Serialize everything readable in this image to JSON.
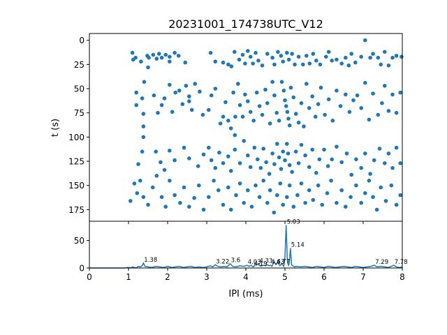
{
  "chart_data": [
    {
      "type": "scatter",
      "title": "20231001_174738UTC_V12",
      "xlabel": "",
      "ylabel": "t (s)",
      "xlim": [
        0,
        8
      ],
      "ylim": [
        187,
        -7
      ],
      "y_inverted": true,
      "xticks": [],
      "yticks": [
        0,
        25,
        50,
        75,
        100,
        125,
        150,
        175
      ],
      "ytick_labels": [
        "0",
        "25",
        "50",
        "75",
        "100",
        "125",
        "150",
        "175"
      ],
      "marker_color": "#1f77b4",
      "grid": false,
      "legend": "none",
      "points": [
        [
          1.1,
          13
        ],
        [
          1.12,
          20
        ],
        [
          1.18,
          18
        ],
        [
          1.32,
          22
        ],
        [
          1.48,
          16
        ],
        [
          1.52,
          18
        ],
        [
          1.63,
          15
        ],
        [
          1.72,
          19
        ],
        [
          1.78,
          14
        ],
        [
          1.85,
          18
        ],
        [
          1.95,
          15
        ],
        [
          2.05,
          17
        ],
        [
          2.18,
          13
        ],
        [
          2.28,
          16
        ],
        [
          2.05,
          22
        ],
        [
          1.5,
          28
        ],
        [
          2.45,
          23
        ],
        [
          3.1,
          13
        ],
        [
          3.22,
          22
        ],
        [
          3.42,
          23
        ],
        [
          3.55,
          25
        ],
        [
          3.63,
          27
        ],
        [
          3.71,
          12
        ],
        [
          3.83,
          20
        ],
        [
          3.92,
          15
        ],
        [
          3.98,
          24
        ],
        [
          4.05,
          11
        ],
        [
          4.12,
          17
        ],
        [
          4.18,
          24
        ],
        [
          4.25,
          13
        ],
        [
          4.32,
          21
        ],
        [
          4.42,
          26
        ],
        [
          4.55,
          14
        ],
        [
          4.68,
          18
        ],
        [
          4.73,
          25
        ],
        [
          4.82,
          12
        ],
        [
          4.9,
          16
        ],
        [
          4.95,
          22
        ],
        [
          5.05,
          13
        ],
        [
          5.1,
          20
        ],
        [
          5.18,
          14
        ],
        [
          5.25,
          25
        ],
        [
          5.35,
          17
        ],
        [
          5.46,
          25
        ],
        [
          5.55,
          16
        ],
        [
          5.63,
          24
        ],
        [
          5.72,
          14
        ],
        [
          5.8,
          21
        ],
        [
          5.9,
          25
        ],
        [
          6.05,
          17
        ],
        [
          6.12,
          12
        ],
        [
          6.2,
          21
        ],
        [
          6.32,
          20
        ],
        [
          6.45,
          24
        ],
        [
          6.55,
          18
        ],
        [
          6.63,
          26
        ],
        [
          6.7,
          14
        ],
        [
          6.8,
          23
        ],
        [
          6.95,
          17
        ],
        [
          7.05,
          0
        ],
        [
          7.18,
          18
        ],
        [
          7.25,
          14
        ],
        [
          7.38,
          18
        ],
        [
          7.45,
          25
        ],
        [
          7.55,
          12
        ],
        [
          7.65,
          26
        ],
        [
          7.75,
          18
        ],
        [
          7.85,
          16
        ],
        [
          7.98,
          17
        ],
        [
          1.4,
          43
        ],
        [
          1.2,
          54
        ],
        [
          1.2,
          67
        ],
        [
          1.35,
          60
        ],
        [
          1.38,
          76
        ],
        [
          1.65,
          57
        ],
        [
          1.75,
          75
        ],
        [
          1.85,
          67
        ],
        [
          1.92,
          60
        ],
        [
          2.05,
          46
        ],
        [
          2.12,
          74
        ],
        [
          2.2,
          54
        ],
        [
          2.3,
          52
        ],
        [
          2.38,
          66
        ],
        [
          2.47,
          47
        ],
        [
          2.55,
          58
        ],
        [
          2.62,
          72
        ],
        [
          2.7,
          45
        ],
        [
          2.82,
          53
        ],
        [
          2.9,
          77
        ],
        [
          3.05,
          72
        ],
        [
          3.12,
          57
        ],
        [
          3.22,
          50
        ],
        [
          3.35,
          86
        ],
        [
          3.42,
          79
        ],
        [
          3.48,
          64
        ],
        [
          3.55,
          83
        ],
        [
          3.62,
          91
        ],
        [
          3.68,
          54
        ],
        [
          3.73,
          79
        ],
        [
          3.8,
          45
        ],
        [
          3.85,
          67
        ],
        [
          3.92,
          79
        ],
        [
          3.98,
          56
        ],
        [
          4.05,
          63
        ],
        [
          4.12,
          74
        ],
        [
          4.2,
          83
        ],
        [
          4.28,
          54
        ],
        [
          4.35,
          68
        ],
        [
          4.42,
          77
        ],
        [
          4.5,
          51
        ],
        [
          4.55,
          65
        ],
        [
          4.62,
          86
        ],
        [
          4.68,
          43
        ],
        [
          4.73,
          57
        ],
        [
          4.79,
          75
        ],
        [
          4.85,
          83
        ],
        [
          4.92,
          43
        ],
        [
          4.97,
          52
        ],
        [
          5.0,
          62
        ],
        [
          5.03,
          68
        ],
        [
          5.06,
          74
        ],
        [
          5.09,
          81
        ],
        [
          5.12,
          88
        ],
        [
          5.15,
          49
        ],
        [
          5.22,
          59
        ],
        [
          5.28,
          76
        ],
        [
          5.35,
          85
        ],
        [
          5.42,
          65
        ],
        [
          5.48,
          89
        ],
        [
          5.55,
          45
        ],
        [
          5.62,
          70
        ],
        [
          5.7,
          58
        ],
        [
          5.78,
          79
        ],
        [
          5.85,
          66
        ],
        [
          5.92,
          49
        ],
        [
          6.02,
          77
        ],
        [
          6.12,
          61
        ],
        [
          6.22,
          83
        ],
        [
          6.32,
          52
        ],
        [
          6.42,
          68
        ],
        [
          6.55,
          56
        ],
        [
          6.65,
          74
        ],
        [
          6.75,
          62
        ],
        [
          6.85,
          57
        ],
        [
          6.95,
          70
        ],
        [
          7.05,
          44
        ],
        [
          7.15,
          82
        ],
        [
          7.25,
          55
        ],
        [
          7.38,
          77
        ],
        [
          7.48,
          65
        ],
        [
          7.55,
          47
        ],
        [
          7.65,
          73
        ],
        [
          7.75,
          56
        ],
        [
          7.85,
          75
        ],
        [
          7.95,
          54
        ],
        [
          1.38,
          89
        ],
        [
          2.55,
          63
        ],
        [
          3.72,
          98
        ],
        [
          1.38,
          100
        ],
        [
          1.35,
          115
        ],
        [
          1.25,
          128
        ],
        [
          1.7,
          115
        ],
        [
          1.82,
          126
        ],
        [
          1.92,
          134
        ],
        [
          2.05,
          114
        ],
        [
          2.18,
          124
        ],
        [
          2.42,
          111
        ],
        [
          2.55,
          122
        ],
        [
          2.78,
          130
        ],
        [
          2.92,
          118
        ],
        [
          3.05,
          111
        ],
        [
          3.12,
          124
        ],
        [
          3.22,
          132
        ],
        [
          3.32,
          116
        ],
        [
          3.42,
          127
        ],
        [
          3.55,
          120
        ],
        [
          3.62,
          135
        ],
        [
          3.72,
          113
        ],
        [
          3.85,
          127
        ],
        [
          3.95,
          104
        ],
        [
          4.05,
          119
        ],
        [
          4.12,
          131
        ],
        [
          4.22,
          111
        ],
        [
          4.3,
          123
        ],
        [
          4.38,
          132
        ],
        [
          4.45,
          112
        ],
        [
          4.52,
          126
        ],
        [
          4.6,
          138
        ],
        [
          4.68,
          117
        ],
        [
          4.73,
          128
        ],
        [
          4.8,
          107
        ],
        [
          4.85,
          121
        ],
        [
          4.9,
          133
        ],
        [
          4.95,
          115
        ],
        [
          5.0,
          124
        ],
        [
          5.05,
          107
        ],
        [
          5.08,
          117
        ],
        [
          5.12,
          129
        ],
        [
          5.18,
          136
        ],
        [
          5.28,
          115
        ],
        [
          5.35,
          127
        ],
        [
          5.42,
          108
        ],
        [
          5.52,
          119
        ],
        [
          5.62,
          131
        ],
        [
          5.7,
          113
        ],
        [
          5.8,
          137
        ],
        [
          5.88,
          123
        ],
        [
          6.0,
          113
        ],
        [
          6.1,
          130
        ],
        [
          6.2,
          123
        ],
        [
          6.32,
          110
        ],
        [
          6.45,
          126
        ],
        [
          6.58,
          117
        ],
        [
          6.7,
          139
        ],
        [
          6.82,
          123
        ],
        [
          6.95,
          132
        ],
        [
          7.05,
          117
        ],
        [
          7.18,
          138
        ],
        [
          7.28,
          124
        ],
        [
          7.42,
          112
        ],
        [
          7.55,
          127
        ],
        [
          7.65,
          117
        ],
        [
          7.75,
          132
        ],
        [
          7.85,
          111
        ],
        [
          7.95,
          127
        ],
        [
          1.05,
          166
        ],
        [
          1.15,
          148
        ],
        [
          1.22,
          158
        ],
        [
          1.3,
          145
        ],
        [
          1.38,
          162
        ],
        [
          1.5,
          170
        ],
        [
          1.62,
          152
        ],
        [
          1.72,
          140
        ],
        [
          1.85,
          162
        ],
        [
          1.95,
          172
        ],
        [
          2.05,
          145
        ],
        [
          2.18,
          160
        ],
        [
          2.32,
          168
        ],
        [
          2.42,
          152
        ],
        [
          2.55,
          172
        ],
        [
          2.68,
          163
        ],
        [
          2.8,
          150
        ],
        [
          2.92,
          175
        ],
        [
          3.05,
          162
        ],
        [
          3.18,
          145
        ],
        [
          3.3,
          155
        ],
        [
          3.42,
          170
        ],
        [
          3.55,
          152
        ],
        [
          3.62,
          175
        ],
        [
          3.75,
          160
        ],
        [
          3.85,
          148
        ],
        [
          3.95,
          168
        ],
        [
          4.05,
          155
        ],
        [
          4.15,
          172
        ],
        [
          4.25,
          150
        ],
        [
          4.35,
          162
        ],
        [
          4.45,
          145
        ],
        [
          4.55,
          168
        ],
        [
          4.62,
          155
        ],
        [
          4.72,
          178
        ],
        [
          4.8,
          160
        ],
        [
          4.88,
          148
        ],
        [
          4.95,
          170
        ],
        [
          5.05,
          162
        ],
        [
          5.12,
          150
        ],
        [
          5.22,
          172
        ],
        [
          5.32,
          160
        ],
        [
          5.42,
          148
        ],
        [
          5.52,
          168
        ],
        [
          5.62,
          155
        ],
        [
          5.72,
          165
        ],
        [
          5.85,
          150
        ],
        [
          5.95,
          170
        ],
        [
          6.08,
          158
        ],
        [
          6.18,
          145
        ],
        [
          6.32,
          168
        ],
        [
          6.45,
          155
        ],
        [
          6.55,
          172
        ],
        [
          6.68,
          162
        ],
        [
          6.82,
          150
        ],
        [
          6.95,
          168
        ],
        [
          7.05,
          158
        ],
        [
          7.15,
          145
        ],
        [
          7.25,
          162
        ],
        [
          7.35,
          175
        ],
        [
          7.45,
          152
        ],
        [
          7.58,
          166
        ],
        [
          7.72,
          150
        ],
        [
          7.85,
          170
        ],
        [
          7.95,
          160
        ]
      ]
    },
    {
      "type": "line",
      "title": "",
      "xlabel": "IPI (ms)",
      "ylabel": "",
      "xlim": [
        0,
        8
      ],
      "ylim": [
        0,
        85
      ],
      "xticks": [
        0,
        1,
        2,
        3,
        4,
        5,
        6,
        7,
        8
      ],
      "xtick_labels": [
        "0",
        "1",
        "2",
        "3",
        "4",
        "5",
        "6",
        "7",
        "8"
      ],
      "yticks": [
        0,
        50
      ],
      "ytick_labels": [
        "0",
        "50"
      ],
      "line_color": "#1f77b4",
      "grid": false,
      "legend": "none",
      "x": [
        0.0,
        0.5,
        0.9,
        1.0,
        1.05,
        1.1,
        1.15,
        1.2,
        1.25,
        1.3,
        1.35,
        1.38,
        1.42,
        1.5,
        1.6,
        1.7,
        1.8,
        1.9,
        2.0,
        2.1,
        2.2,
        2.3,
        2.4,
        2.5,
        2.6,
        2.7,
        2.8,
        2.9,
        3.0,
        3.1,
        3.15,
        3.22,
        3.28,
        3.35,
        3.45,
        3.52,
        3.6,
        3.66,
        3.75,
        3.85,
        3.95,
        4.03,
        4.08,
        4.13,
        4.19,
        4.25,
        4.33,
        4.38,
        4.45,
        4.5,
        4.55,
        4.6,
        4.63,
        4.67,
        4.72,
        4.77,
        4.82,
        4.87,
        4.92,
        4.97,
        5.0,
        5.03,
        5.06,
        5.09,
        5.11,
        5.14,
        5.17,
        5.2,
        5.25,
        5.3,
        5.4,
        5.5,
        5.6,
        5.7,
        5.8,
        5.9,
        6.0,
        6.1,
        6.2,
        6.3,
        6.4,
        6.5,
        6.6,
        6.7,
        6.8,
        6.9,
        7.0,
        7.1,
        7.2,
        7.29,
        7.35,
        7.45,
        7.55,
        7.65,
        7.72,
        7.78,
        7.85,
        7.92,
        8.0
      ],
      "y": [
        0,
        0,
        0,
        1,
        0,
        2,
        1,
        0,
        3,
        2,
        4,
        9,
        3,
        2,
        1,
        3,
        2,
        1,
        3,
        1,
        2,
        3,
        1,
        2,
        3,
        1,
        2,
        1,
        2,
        4,
        2,
        6,
        3,
        2,
        3,
        2,
        8,
        3,
        2,
        4,
        3,
        5,
        3,
        5,
        2,
        6,
        7,
        3,
        5,
        4,
        6,
        4,
        5,
        3,
        12,
        6,
        10,
        4,
        8,
        3,
        20,
        78,
        14,
        5,
        8,
        36,
        6,
        4,
        2,
        3,
        2,
        3,
        2,
        1,
        3,
        2,
        1,
        3,
        2,
        1,
        2,
        3,
        2,
        1,
        3,
        2,
        1,
        2,
        3,
        5,
        2,
        3,
        2,
        1,
        3,
        5,
        2,
        1,
        2
      ],
      "annotations": [
        {
          "x": 1.38,
          "label": "1.38"
        },
        {
          "x": 3.22,
          "label": "3.22"
        },
        {
          "x": 3.6,
          "label": "3.6"
        },
        {
          "x": 4.03,
          "label": "4.03"
        },
        {
          "x": 4.19,
          "label": "4.19"
        },
        {
          "x": 4.33,
          "label": "4.33"
        },
        {
          "x": 4.63,
          "label": "4.63"
        },
        {
          "x": 4.77,
          "label": "4.77"
        },
        {
          "x": 5.03,
          "label": "5.03"
        },
        {
          "x": 5.14,
          "label": "5.14"
        },
        {
          "x": 7.29,
          "label": "7.29"
        },
        {
          "x": 7.78,
          "label": "7.78"
        }
      ]
    }
  ]
}
